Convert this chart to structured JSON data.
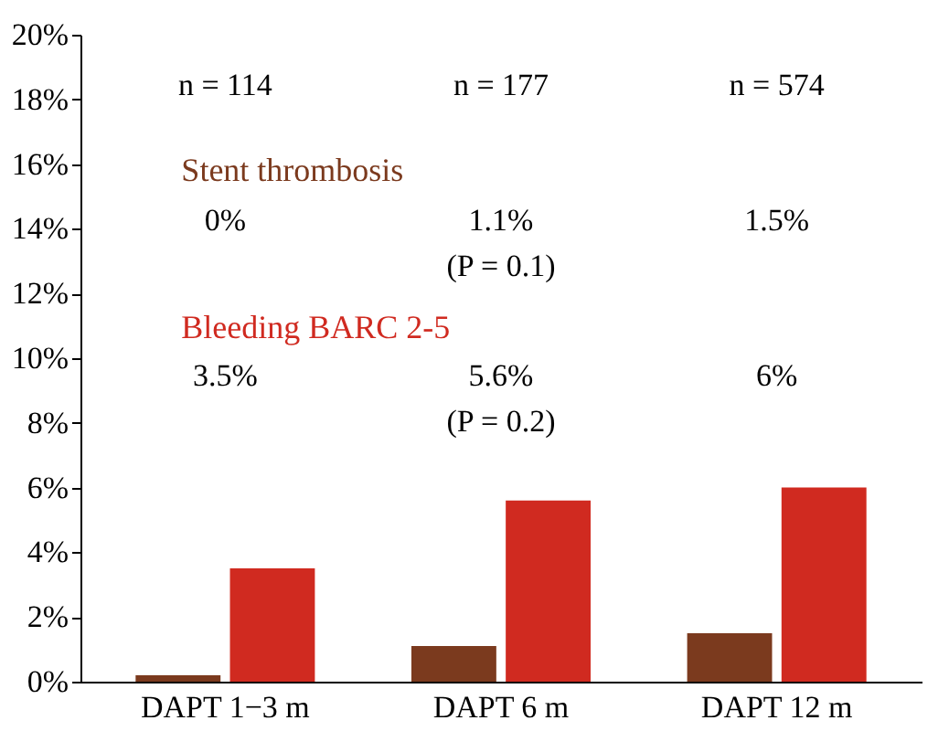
{
  "chart_data": {
    "type": "bar",
    "categories": [
      "DAPT 1−3 m",
      "DAPT 6 m",
      "DAPT 12 m"
    ],
    "series": [
      {
        "name": "Stent thrombosis",
        "color": "#7b3a1e",
        "values": [
          0.2,
          1.1,
          1.5
        ]
      },
      {
        "name": "Bleeding BARC 2-5",
        "color": "#d02a20",
        "values": [
          3.5,
          5.6,
          6.0
        ]
      }
    ],
    "ylim": [
      0,
      20
    ],
    "yticks": [
      {
        "value": 0,
        "label": "0%"
      },
      {
        "value": 2,
        "label": "2%"
      },
      {
        "value": 4,
        "label": "4%"
      },
      {
        "value": 6,
        "label": "6%"
      },
      {
        "value": 8,
        "label": "8%"
      },
      {
        "value": 10,
        "label": "10%"
      },
      {
        "value": 12,
        "label": "12%"
      },
      {
        "value": 14,
        "label": "14%"
      },
      {
        "value": 16,
        "label": "16%"
      },
      {
        "value": 18,
        "label": "18%"
      },
      {
        "value": 20,
        "label": "20%"
      }
    ],
    "grid": false,
    "legend": "top left",
    "annotations": [
      "n = 114",
      "n = 177",
      "n = 574",
      "0%",
      "1.1%",
      "(P = 0.1)",
      "1.5%",
      "3.5%",
      "5.6%",
      "(P = 0.2)",
      "6%"
    ]
  }
}
